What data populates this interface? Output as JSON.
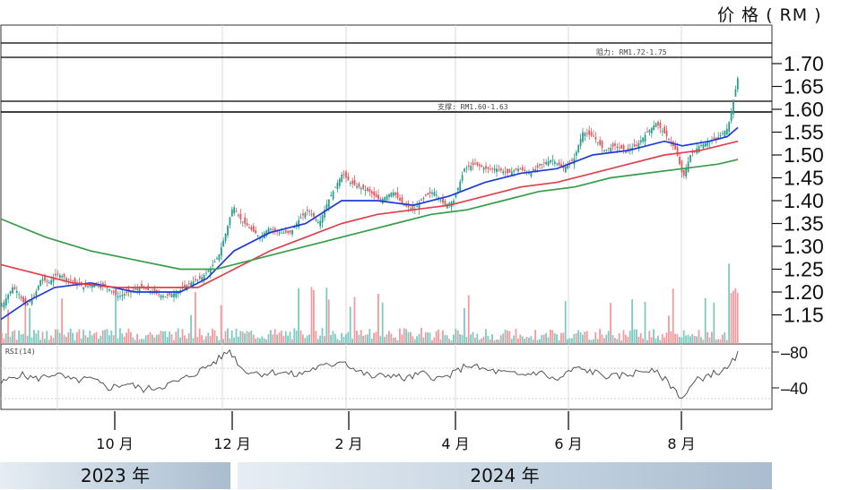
{
  "chart_data": {
    "type": "candlestick",
    "unit_label": "价 格 ( RM )",
    "price_axis": {
      "ticks": [
        "1.70",
        "1.65",
        "1.60",
        "1.55",
        "1.50",
        "1.45",
        "1.40",
        "1.35",
        "1.30",
        "1.25",
        "1.20",
        "1.15"
      ],
      "ylim": [
        1.125,
        1.785
      ]
    },
    "osc_axis": {
      "ticks": [
        "80",
        "40"
      ],
      "ylim": [
        10,
        100
      ]
    },
    "months": [
      "10 月",
      "12 月",
      "2 月",
      "4 月",
      "6 月",
      "8 月"
    ],
    "years": [
      "2023 年",
      "2024 年"
    ],
    "resistance": {
      "label": "阻力: RM1.72-1.75",
      "low": 1.72,
      "high": 1.75
    },
    "support": {
      "label": "支撑: RM1.60-1.63",
      "low": 1.6,
      "high": 1.63
    },
    "osc_label": "RSI(14)",
    "price_path": [
      [
        0,
        1.17
      ],
      [
        12,
        1.21
      ],
      [
        18,
        1.2
      ],
      [
        26,
        1.17
      ],
      [
        36,
        1.19
      ],
      [
        44,
        1.23
      ],
      [
        52,
        1.22
      ],
      [
        62,
        1.24
      ],
      [
        72,
        1.23
      ],
      [
        82,
        1.22
      ],
      [
        92,
        1.21
      ],
      [
        105,
        1.22
      ],
      [
        118,
        1.21
      ],
      [
        130,
        1.19
      ],
      [
        142,
        1.2
      ],
      [
        155,
        1.21
      ],
      [
        168,
        1.2
      ],
      [
        182,
        1.19
      ],
      [
        196,
        1.2
      ],
      [
        210,
        1.22
      ],
      [
        222,
        1.23
      ],
      [
        232,
        1.25
      ],
      [
        242,
        1.28
      ],
      [
        250,
        1.33
      ],
      [
        258,
        1.39
      ],
      [
        266,
        1.36
      ],
      [
        276,
        1.34
      ],
      [
        288,
        1.32
      ],
      [
        298,
        1.34
      ],
      [
        310,
        1.33
      ],
      [
        322,
        1.33
      ],
      [
        332,
        1.36
      ],
      [
        342,
        1.38
      ],
      [
        354,
        1.35
      ],
      [
        364,
        1.4
      ],
      [
        372,
        1.43
      ],
      [
        380,
        1.46
      ],
      [
        388,
        1.44
      ],
      [
        398,
        1.43
      ],
      [
        410,
        1.42
      ],
      [
        422,
        1.4
      ],
      [
        436,
        1.42
      ],
      [
        448,
        1.39
      ],
      [
        460,
        1.38
      ],
      [
        472,
        1.41
      ],
      [
        482,
        1.42
      ],
      [
        494,
        1.39
      ],
      [
        504,
        1.4
      ],
      [
        516,
        1.47
      ],
      [
        528,
        1.48
      ],
      [
        540,
        1.47
      ],
      [
        552,
        1.47
      ],
      [
        564,
        1.46
      ],
      [
        576,
        1.47
      ],
      [
        590,
        1.46
      ],
      [
        602,
        1.48
      ],
      [
        614,
        1.49
      ],
      [
        626,
        1.47
      ],
      [
        638,
        1.49
      ],
      [
        648,
        1.55
      ],
      [
        660,
        1.54
      ],
      [
        672,
        1.51
      ],
      [
        684,
        1.52
      ],
      [
        696,
        1.51
      ],
      [
        708,
        1.52
      ],
      [
        720,
        1.55
      ],
      [
        730,
        1.57
      ],
      [
        742,
        1.54
      ],
      [
        752,
        1.51
      ],
      [
        760,
        1.45
      ],
      [
        768,
        1.5
      ],
      [
        778,
        1.52
      ],
      [
        790,
        1.53
      ],
      [
        800,
        1.54
      ],
      [
        810,
        1.56
      ],
      [
        816,
        1.62
      ],
      [
        821,
        1.67
      ]
    ],
    "series": [
      {
        "color": "#1f3bd6",
        "points": [
          [
            0,
            1.14
          ],
          [
            30,
            1.18
          ],
          [
            60,
            1.21
          ],
          [
            100,
            1.22
          ],
          [
            150,
            1.2
          ],
          [
            200,
            1.2
          ],
          [
            230,
            1.23
          ],
          [
            260,
            1.29
          ],
          [
            300,
            1.33
          ],
          [
            340,
            1.35
          ],
          [
            380,
            1.4
          ],
          [
            420,
            1.4
          ],
          [
            460,
            1.39
          ],
          [
            500,
            1.41
          ],
          [
            540,
            1.44
          ],
          [
            580,
            1.46
          ],
          [
            620,
            1.47
          ],
          [
            660,
            1.5
          ],
          [
            700,
            1.51
          ],
          [
            740,
            1.53
          ],
          [
            760,
            1.52
          ],
          [
            790,
            1.53
          ],
          [
            810,
            1.54
          ],
          [
            822,
            1.56
          ]
        ]
      },
      {
        "color": "#e0404a",
        "points": [
          [
            0,
            1.26
          ],
          [
            40,
            1.24
          ],
          [
            80,
            1.22
          ],
          [
            130,
            1.21
          ],
          [
            180,
            1.21
          ],
          [
            220,
            1.21
          ],
          [
            260,
            1.25
          ],
          [
            300,
            1.29
          ],
          [
            340,
            1.32
          ],
          [
            380,
            1.35
          ],
          [
            420,
            1.37
          ],
          [
            460,
            1.38
          ],
          [
            500,
            1.39
          ],
          [
            540,
            1.41
          ],
          [
            580,
            1.43
          ],
          [
            620,
            1.44
          ],
          [
            660,
            1.46
          ],
          [
            700,
            1.48
          ],
          [
            740,
            1.5
          ],
          [
            780,
            1.51
          ],
          [
            822,
            1.53
          ]
        ]
      },
      {
        "color": "#3a9b4a",
        "points": [
          [
            0,
            1.36
          ],
          [
            50,
            1.32
          ],
          [
            100,
            1.29
          ],
          [
            150,
            1.27
          ],
          [
            200,
            1.25
          ],
          [
            240,
            1.25
          ],
          [
            280,
            1.27
          ],
          [
            320,
            1.29
          ],
          [
            360,
            1.31
          ],
          [
            400,
            1.33
          ],
          [
            440,
            1.35
          ],
          [
            480,
            1.37
          ],
          [
            520,
            1.38
          ],
          [
            560,
            1.4
          ],
          [
            600,
            1.42
          ],
          [
            640,
            1.43
          ],
          [
            680,
            1.45
          ],
          [
            720,
            1.46
          ],
          [
            760,
            1.47
          ],
          [
            800,
            1.48
          ],
          [
            822,
            1.49
          ]
        ]
      }
    ],
    "osc_values": [
      [
        0,
        45
      ],
      [
        20,
        55
      ],
      [
        40,
        50
      ],
      [
        60,
        56
      ],
      [
        80,
        48
      ],
      [
        100,
        50
      ],
      [
        120,
        40
      ],
      [
        140,
        45
      ],
      [
        160,
        38
      ],
      [
        180,
        42
      ],
      [
        200,
        48
      ],
      [
        220,
        58
      ],
      [
        240,
        70
      ],
      [
        255,
        82
      ],
      [
        270,
        60
      ],
      [
        290,
        56
      ],
      [
        310,
        58
      ],
      [
        330,
        54
      ],
      [
        350,
        62
      ],
      [
        370,
        66
      ],
      [
        380,
        72
      ],
      [
        395,
        60
      ],
      [
        415,
        52
      ],
      [
        435,
        55
      ],
      [
        450,
        50
      ],
      [
        470,
        56
      ],
      [
        490,
        50
      ],
      [
        505,
        56
      ],
      [
        520,
        66
      ],
      [
        540,
        60
      ],
      [
        560,
        57
      ],
      [
        580,
        54
      ],
      [
        600,
        58
      ],
      [
        620,
        48
      ],
      [
        640,
        62
      ],
      [
        660,
        58
      ],
      [
        680,
        52
      ],
      [
        700,
        55
      ],
      [
        720,
        60
      ],
      [
        735,
        55
      ],
      [
        750,
        40
      ],
      [
        760,
        28
      ],
      [
        775,
        48
      ],
      [
        790,
        55
      ],
      [
        810,
        60
      ],
      [
        822,
        78
      ]
    ]
  }
}
